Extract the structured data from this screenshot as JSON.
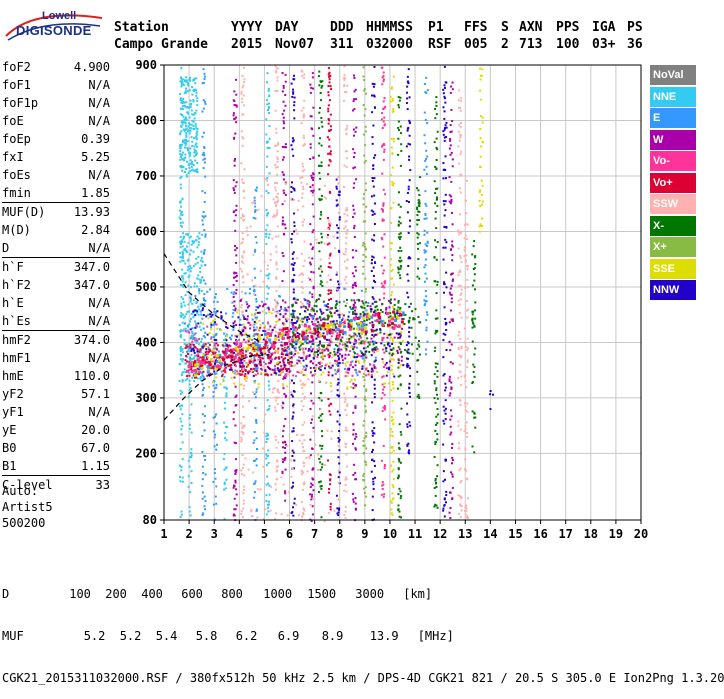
{
  "logo": {
    "line1": "Lowell",
    "line2": "DIGISONDE"
  },
  "header": {
    "row1": [
      "Station",
      "YYYY",
      "DAY",
      "DDD",
      "HHMMSS",
      "P1",
      "FFS",
      "S",
      "AXN",
      "PPS",
      "IGA",
      "PS"
    ],
    "row2": [
      "Campo Grande",
      "2015",
      "Nov07",
      "311",
      "032000",
      "RSF",
      "005",
      "2",
      "713",
      "100",
      "03+",
      "36"
    ]
  },
  "params": [
    {
      "k": "foF2",
      "v": "4.900"
    },
    {
      "k": "foF1",
      "v": "N/A"
    },
    {
      "k": "foF1p",
      "v": "N/A"
    },
    {
      "k": "foE",
      "v": "N/A"
    },
    {
      "k": "foEp",
      "v": "0.39"
    },
    {
      "k": "fxI",
      "v": "5.25"
    },
    {
      "k": "foEs",
      "v": "N/A"
    },
    {
      "k": "fmin",
      "v": "1.85"
    },
    {
      "k": "MUF(D)",
      "v": "13.93",
      "sep": true
    },
    {
      "k": "M(D)",
      "v": "2.84"
    },
    {
      "k": "D",
      "v": "N/A"
    },
    {
      "k": "h`F",
      "v": "347.0",
      "sep": true
    },
    {
      "k": "h`F2",
      "v": "347.0"
    },
    {
      "k": "h`E",
      "v": "N/A"
    },
    {
      "k": "h`Es",
      "v": "N/A"
    },
    {
      "k": "hmF2",
      "v": "374.0",
      "sep": true
    },
    {
      "k": "hmF1",
      "v": "N/A"
    },
    {
      "k": "hmE",
      "v": "110.0"
    },
    {
      "k": "yF2",
      "v": "57.1"
    },
    {
      "k": "yF1",
      "v": "N/A"
    },
    {
      "k": "yE",
      "v": "20.0"
    },
    {
      "k": "B0",
      "v": "67.0"
    },
    {
      "k": "B1",
      "v": "1.15"
    },
    {
      "k": "C-level",
      "v": "33",
      "sep": true
    }
  ],
  "auto": {
    "line1": "Auto:",
    "line2": "Artist5",
    "line3": "500200"
  },
  "legend": [
    {
      "label": "NoVal",
      "color": "#808080"
    },
    {
      "label": "NNE",
      "color": "#33ccf0"
    },
    {
      "label": "E",
      "color": "#3399ff"
    },
    {
      "label": "W",
      "color": "#aa00aa"
    },
    {
      "label": "Vo-",
      "color": "#ff3399"
    },
    {
      "label": "Vo+",
      "color": "#dd0033"
    },
    {
      "label": "SSW",
      "color": "#ffb0b0"
    },
    {
      "label": "X-",
      "color": "#007700"
    },
    {
      "label": "X+",
      "color": "#88bb44"
    },
    {
      "label": "SSE",
      "color": "#dddd00"
    },
    {
      "label": "NNW",
      "color": "#2200cc"
    }
  ],
  "bottom": {
    "d_label": "D",
    "d_values": [
      "100",
      "200",
      "400",
      "600",
      "800",
      "1000",
      "1500",
      "3000",
      "[km]"
    ],
    "muf_label": "MUF",
    "muf_values": [
      "5.2",
      "5.2",
      "5.4",
      "5.8",
      "6.2",
      "6.9",
      "8.9",
      "13.9",
      "[MHz]"
    ],
    "footer": "CGK21_2015311032000.RSF / 380fx512h 50 kHz 2.5 km / DPS-4D CGK21 821 / 20.5 S 305.0 E Ion2Png 1.3.20"
  },
  "chart_data": {
    "type": "scatter",
    "xlim": [
      1,
      20
    ],
    "ylim": [
      80,
      900
    ],
    "x_ticks": [
      1,
      2,
      3,
      4,
      5,
      6,
      7,
      8,
      9,
      10,
      11,
      12,
      13,
      14,
      15,
      16,
      17,
      18,
      19,
      20
    ],
    "y_ticks": [
      80,
      200,
      300,
      400,
      500,
      600,
      700,
      800,
      900
    ],
    "grid": true,
    "legend_position": "right",
    "profile_dashed": [
      [
        1.0,
        260
      ],
      [
        1.8,
        300
      ],
      [
        2.5,
        330
      ],
      [
        3.5,
        360
      ],
      [
        4.5,
        376
      ],
      [
        5.2,
        378
      ]
    ],
    "profile_upper_dashed": [
      [
        1.0,
        560
      ],
      [
        2.0,
        490
      ],
      [
        3.0,
        450
      ],
      [
        4.0,
        420
      ],
      [
        4.9,
        400
      ]
    ],
    "trace_f_region": [
      [
        1.85,
        347
      ],
      [
        2.5,
        360
      ],
      [
        3.5,
        380
      ],
      [
        4.5,
        400
      ],
      [
        5.5,
        412
      ],
      [
        6.5,
        418
      ],
      [
        7.5,
        425
      ],
      [
        8.5,
        432
      ],
      [
        9.5,
        440
      ],
      [
        10.5,
        445
      ]
    ],
    "clusters": [
      {
        "series": "NNE",
        "x": [
          1.6,
          2.3
        ],
        "y": [
          700,
          880
        ]
      },
      {
        "series": "NNE",
        "x": [
          1.6,
          2.5
        ],
        "y": [
          330,
          600
        ]
      },
      {
        "series": "E",
        "x": [
          1.8,
          9.5
        ],
        "y": [
          340,
          500
        ]
      },
      {
        "series": "Vo-",
        "x": [
          1.8,
          9.5
        ],
        "y": [
          340,
          440
        ]
      },
      {
        "series": "Vo+",
        "x": [
          1.8,
          6.0
        ],
        "y": [
          340,
          400
        ]
      },
      {
        "series": "SSE",
        "x": [
          2.5,
          10.5
        ],
        "y": [
          320,
          460
        ]
      },
      {
        "series": "SSW",
        "x": [
          4.0,
          8.0
        ],
        "y": [
          80,
          700
        ]
      },
      {
        "series": "W",
        "x": [
          4.0,
          10.5
        ],
        "y": [
          350,
          480
        ]
      },
      {
        "series": "X-",
        "x": [
          6.0,
          11.0
        ],
        "y": [
          380,
          480
        ]
      },
      {
        "series": "NNW",
        "x": [
          2.0,
          10.5
        ],
        "y": [
          340,
          470
        ]
      }
    ],
    "verticals": [
      {
        "x": 1.65,
        "series": "NNE",
        "ymin": 80,
        "ymax": 900
      },
      {
        "x": 2.0,
        "series": "NNE",
        "ymin": 80,
        "ymax": 480
      },
      {
        "x": 2.55,
        "series": "E",
        "ymin": 80,
        "ymax": 900
      },
      {
        "x": 3.0,
        "series": "E",
        "ymin": 80,
        "ymax": 500
      },
      {
        "x": 3.4,
        "series": "NNE",
        "ymin": 80,
        "ymax": 420
      },
      {
        "x": 3.8,
        "series": "W",
        "ymin": 80,
        "ymax": 900
      },
      {
        "x": 4.1,
        "series": "SSW",
        "ymin": 80,
        "ymax": 900
      },
      {
        "x": 4.6,
        "series": "E",
        "ymin": 80,
        "ymax": 700
      },
      {
        "x": 5.1,
        "series": "NNE",
        "ymin": 80,
        "ymax": 900
      },
      {
        "x": 5.45,
        "series": "SSW",
        "ymin": 80,
        "ymax": 900
      },
      {
        "x": 5.75,
        "series": "W",
        "ymin": 80,
        "ymax": 900
      },
      {
        "x": 6.1,
        "series": "NNW",
        "ymin": 80,
        "ymax": 900
      },
      {
        "x": 6.5,
        "series": "SSW",
        "ymin": 80,
        "ymax": 900
      },
      {
        "x": 6.85,
        "series": "W",
        "ymin": 80,
        "ymax": 900
      },
      {
        "x": 7.2,
        "series": "X-",
        "ymin": 80,
        "ymax": 900
      },
      {
        "x": 7.55,
        "series": "Vo+",
        "ymin": 80,
        "ymax": 900
      },
      {
        "x": 7.9,
        "series": "NNW",
        "ymin": 80,
        "ymax": 700
      },
      {
        "x": 8.2,
        "series": "SSW",
        "ymin": 80,
        "ymax": 900
      },
      {
        "x": 8.55,
        "series": "W",
        "ymin": 80,
        "ymax": 900
      },
      {
        "x": 8.95,
        "series": "X+",
        "ymin": 80,
        "ymax": 900
      },
      {
        "x": 9.3,
        "series": "NNW",
        "ymin": 80,
        "ymax": 900
      },
      {
        "x": 9.7,
        "series": "Vo-",
        "ymin": 80,
        "ymax": 900
      },
      {
        "x": 10.05,
        "series": "SSE",
        "ymin": 80,
        "ymax": 900
      },
      {
        "x": 10.35,
        "series": "X-",
        "ymin": 80,
        "ymax": 850
      },
      {
        "x": 10.7,
        "series": "NNW",
        "ymin": 200,
        "ymax": 900
      },
      {
        "x": 11.1,
        "series": "X-",
        "ymin": 300,
        "ymax": 700
      },
      {
        "x": 11.4,
        "series": "E",
        "ymin": 380,
        "ymax": 880
      },
      {
        "x": 11.8,
        "series": "X-",
        "ymin": 80,
        "ymax": 860
      },
      {
        "x": 12.15,
        "series": "NNW",
        "ymin": 80,
        "ymax": 900
      },
      {
        "x": 12.4,
        "series": "W",
        "ymin": 80,
        "ymax": 880
      },
      {
        "x": 12.75,
        "series": "SSW",
        "ymin": 80,
        "ymax": 870
      },
      {
        "x": 13.0,
        "series": "SSW",
        "ymin": 80,
        "ymax": 700
      },
      {
        "x": 13.3,
        "series": "X-",
        "ymin": 200,
        "ymax": 600
      },
      {
        "x": 13.6,
        "series": "SSE",
        "ymin": 600,
        "ymax": 900
      },
      {
        "x": 14.0,
        "series": "NNW",
        "ymin": 280,
        "ymax": 320
      }
    ]
  }
}
